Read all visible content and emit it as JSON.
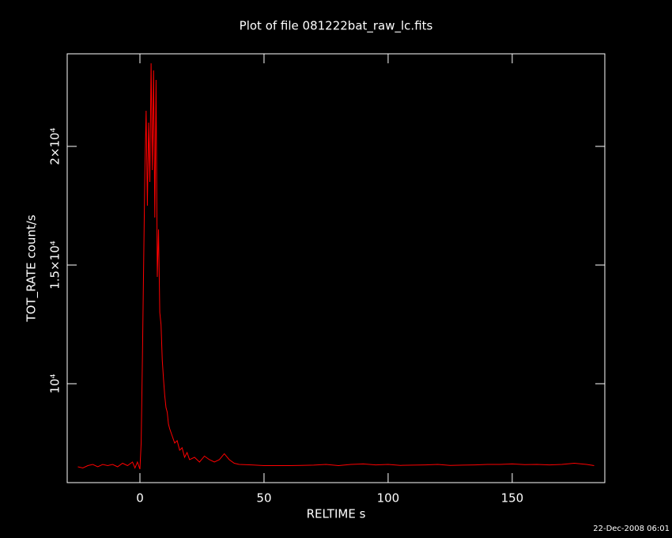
{
  "chart_data": {
    "type": "line",
    "title": "Plot of file 081222bat_raw_lc.fits",
    "x_label": "RELTIME  s",
    "y_label": "TOT_RATE  count/s",
    "timestamp": "22-Dec-2008 06:01",
    "color": "#ff0000",
    "xlim": [
      -29.3,
      187.3
    ],
    "ylim": [
      5833,
      23900
    ],
    "xticks": [
      0,
      50,
      100,
      150
    ],
    "yticks": [
      {
        "value": 10000,
        "label": "10⁴"
      },
      {
        "value": 15000,
        "label": "1.5×10⁴"
      },
      {
        "value": 20000,
        "label": "2×10⁴"
      }
    ],
    "x": [
      -25,
      -23,
      -21,
      -19,
      -17,
      -15,
      -13,
      -11,
      -9,
      -7,
      -5,
      -3,
      -2,
      -1,
      0,
      0.5,
      1,
      1.5,
      2,
      2.5,
      3,
      3.5,
      4,
      4.5,
      5,
      5.5,
      6,
      6.5,
      7,
      7.5,
      8,
      8.5,
      9,
      9.5,
      10,
      10.5,
      11,
      11.5,
      12,
      13,
      14,
      15,
      16,
      17,
      18,
      19,
      20,
      22,
      24,
      26,
      28,
      30,
      32,
      34,
      36,
      38,
      40,
      45,
      50,
      55,
      60,
      65,
      70,
      75,
      80,
      85,
      90,
      95,
      100,
      105,
      110,
      115,
      120,
      125,
      130,
      135,
      140,
      145,
      150,
      155,
      160,
      165,
      170,
      175,
      180,
      183
    ],
    "values": [
      6500,
      6450,
      6550,
      6600,
      6500,
      6600,
      6550,
      6600,
      6500,
      6650,
      6550,
      6700,
      6450,
      6700,
      6400,
      7500,
      11000,
      15000,
      19000,
      21500,
      17500,
      21000,
      18500,
      23500,
      19000,
      23200,
      17000,
      22800,
      14500,
      16500,
      13000,
      12500,
      11000,
      10200,
      9500,
      9000,
      8800,
      8300,
      8100,
      7800,
      7500,
      7600,
      7200,
      7300,
      6900,
      7100,
      6800,
      6900,
      6700,
      6950,
      6800,
      6700,
      6800,
      7050,
      6800,
      6650,
      6600,
      6580,
      6550,
      6550,
      6550,
      6560,
      6570,
      6600,
      6550,
      6600,
      6620,
      6580,
      6600,
      6560,
      6570,
      6580,
      6600,
      6560,
      6570,
      6580,
      6600,
      6600,
      6620,
      6590,
      6600,
      6580,
      6600,
      6650,
      6600,
      6550
    ]
  }
}
